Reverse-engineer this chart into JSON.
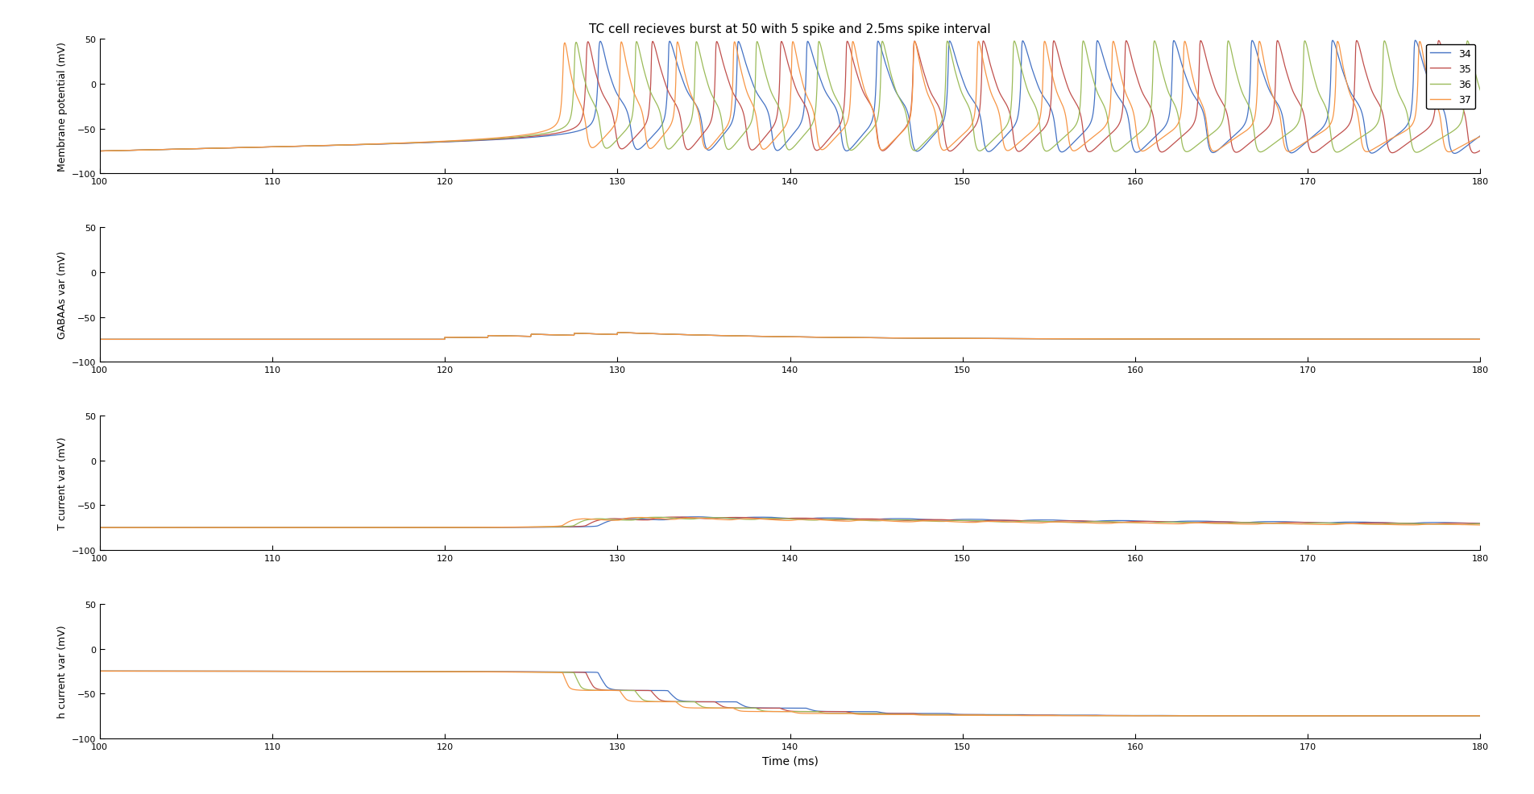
{
  "title": "TC cell recieves burst at 50 with 5 spike and 2.5ms spike interval",
  "xlabel": "Time (ms)",
  "ylabels": [
    "Membrane potential (mV)",
    "GABAAs var (mV)",
    "T current var (mV)",
    "h current var (mV)"
  ],
  "xlim": [
    100,
    180
  ],
  "ylim": [
    -100,
    50
  ],
  "yticks": [
    -100,
    -50,
    0,
    50
  ],
  "xticks": [
    100,
    110,
    120,
    130,
    140,
    150,
    160,
    170,
    180
  ],
  "colors": [
    "#4472C4",
    "#C0504D",
    "#9BBB59",
    "#F79646"
  ],
  "legend_labels": [
    "34",
    "35",
    "36",
    "37"
  ],
  "temperatures": [
    34,
    35,
    36,
    37
  ],
  "background_color": "#ffffff"
}
